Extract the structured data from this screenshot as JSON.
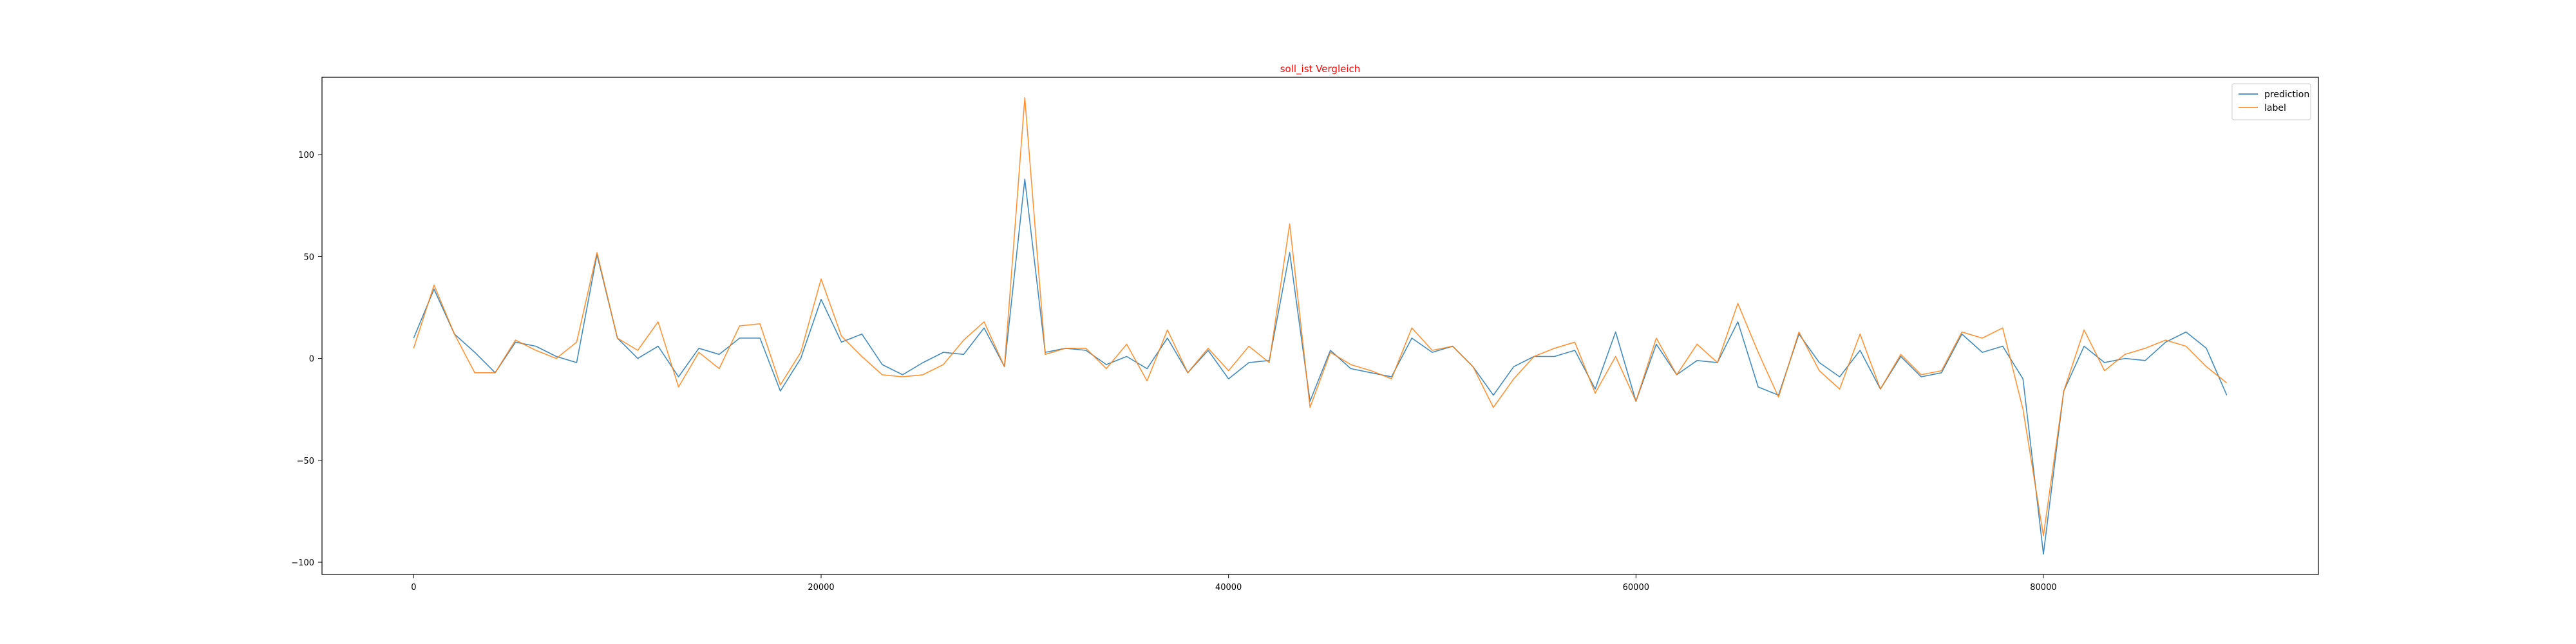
{
  "chart_data": {
    "type": "line",
    "title": "soll_ist Vergleich",
    "title_color": "#ff0000",
    "xlabel": "",
    "ylabel": "",
    "xlim": [
      -4500,
      93500
    ],
    "ylim": [
      -106,
      138
    ],
    "x_ticks": [
      0,
      20000,
      40000,
      60000,
      80000
    ],
    "x_tick_labels": [
      "0",
      "20000",
      "40000",
      "60000",
      "80000"
    ],
    "y_ticks": [
      -100,
      -50,
      0,
      50,
      100
    ],
    "y_tick_labels": [
      "−100",
      "−50",
      "0",
      "50",
      "100"
    ],
    "grid": false,
    "legend_position": "top-right",
    "x": [
      0,
      1000,
      2000,
      3000,
      4000,
      5000,
      6000,
      7000,
      8000,
      9000,
      10000,
      11000,
      12000,
      13000,
      14000,
      15000,
      16000,
      17000,
      18000,
      19000,
      20000,
      21000,
      22000,
      23000,
      24000,
      25000,
      26000,
      27000,
      28000,
      29000,
      30000,
      31000,
      32000,
      33000,
      34000,
      35000,
      36000,
      37000,
      38000,
      39000,
      40000,
      41000,
      42000,
      43000,
      44000,
      45000,
      46000,
      47000,
      48000,
      49000,
      50000,
      51000,
      52000,
      53000,
      54000,
      55000,
      56000,
      57000,
      58000,
      59000,
      60000,
      61000,
      62000,
      63000,
      64000,
      65000,
      66000,
      67000,
      68000,
      69000,
      70000,
      71000,
      72000,
      73000,
      74000,
      75000,
      76000,
      77000,
      78000,
      79000,
      80000,
      81000,
      82000,
      83000,
      84000,
      85000,
      86000,
      87000,
      88000,
      89000
    ],
    "series": [
      {
        "name": "prediction",
        "color": "#1f77b4",
        "values": [
          10,
          34,
          12,
          3,
          -7,
          8,
          6,
          1,
          -2,
          51,
          10,
          0,
          6,
          -9,
          5,
          2,
          10,
          10,
          -16,
          0,
          29,
          8,
          12,
          -3,
          -8,
          -2,
          3,
          2,
          15,
          -4,
          88,
          3,
          5,
          4,
          -3,
          1,
          -5,
          10,
          -7,
          4,
          -10,
          -2,
          -1,
          52,
          -21,
          4,
          -5,
          -7,
          -9,
          10,
          3,
          6,
          -4,
          -18,
          -4,
          1,
          1,
          4,
          -15,
          13,
          -21,
          7,
          -8,
          -1,
          -2,
          18,
          -14,
          -18,
          12,
          -2,
          -9,
          4,
          -15,
          1,
          -9,
          -7,
          12,
          3,
          6,
          -10,
          -96,
          -16,
          6,
          -2,
          0,
          -1,
          8,
          13,
          5,
          -18
        ]
      },
      {
        "name": "label",
        "color": "#ff7f0e",
        "values": [
          5,
          36,
          12,
          -7,
          -7,
          9,
          4,
          0,
          8,
          52,
          10,
          4,
          18,
          -14,
          3,
          -5,
          16,
          17,
          -13,
          3,
          39,
          11,
          1,
          -8,
          -9,
          -8,
          -3,
          9,
          18,
          -4,
          128,
          2,
          5,
          5,
          -5,
          7,
          -11,
          14,
          -7,
          5,
          -6,
          6,
          -2,
          66,
          -24,
          3,
          -3,
          -6,
          -10,
          15,
          4,
          6,
          -4,
          -24,
          -10,
          1,
          5,
          8,
          -17,
          1,
          -21,
          10,
          -8,
          7,
          -2,
          27,
          3,
          -19,
          13,
          -6,
          -15,
          12,
          -15,
          2,
          -8,
          -6,
          13,
          10,
          15,
          -25,
          -87,
          -16,
          14,
          -6,
          2,
          5,
          9,
          6,
          -4,
          -12
        ]
      }
    ]
  }
}
